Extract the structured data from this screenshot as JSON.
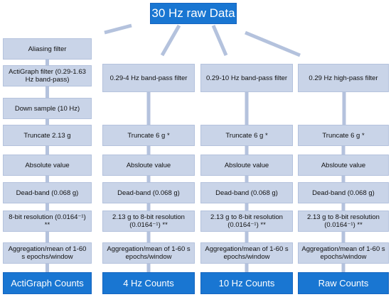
{
  "source": "30 Hz raw Data",
  "columns": [
    {
      "steps": [
        "Aliasing filter",
        "ActiGraph filter (0.29-1.63 Hz band-pass)",
        "Down sample (10 Hz)",
        "Truncate 2.13 g",
        "Absolute value",
        "Dead-band (0.068 g)",
        "8-bit resolution (0.0164⁻¹) **",
        "Aggregation/mean of 1-60 s epochs/window"
      ],
      "output": "ActiGraph Counts"
    },
    {
      "steps": [
        "0.29-4 Hz band-pass filter",
        "Truncate 6 g *",
        "Absloute value",
        "Dead-band (0.068 g)",
        "2.13 g to 8-bit resolution (0.0164⁻¹) **",
        "Aggregation/mean of 1-60 s epochs/window"
      ],
      "output": "4 Hz Counts"
    },
    {
      "steps": [
        "0.29-10 Hz band-pass filter",
        "Truncate 6 g *",
        "Absloute value",
        "Dead-band (0.068 g)",
        "2.13 g to 8-bit resolution (0.0164⁻¹) **",
        "Aggregation/mean of 1-60 s epochs/window"
      ],
      "output": "10 Hz Counts"
    },
    {
      "steps": [
        "0.29 Hz high-pass filter",
        "Truncate 6 g *",
        "Absloute value",
        "Dead-band (0.068 g)",
        "2.13 g to 8-bit resolution (0.0164⁻¹) **",
        "Aggregation/mean of 1-60 s epochs/window"
      ],
      "output": "Raw Counts"
    }
  ],
  "colors": {
    "step_fill": "#c9d4e8",
    "connector": "#b4c2dd",
    "source_fill": "#1976d2",
    "output_fill": "#1976d2"
  }
}
